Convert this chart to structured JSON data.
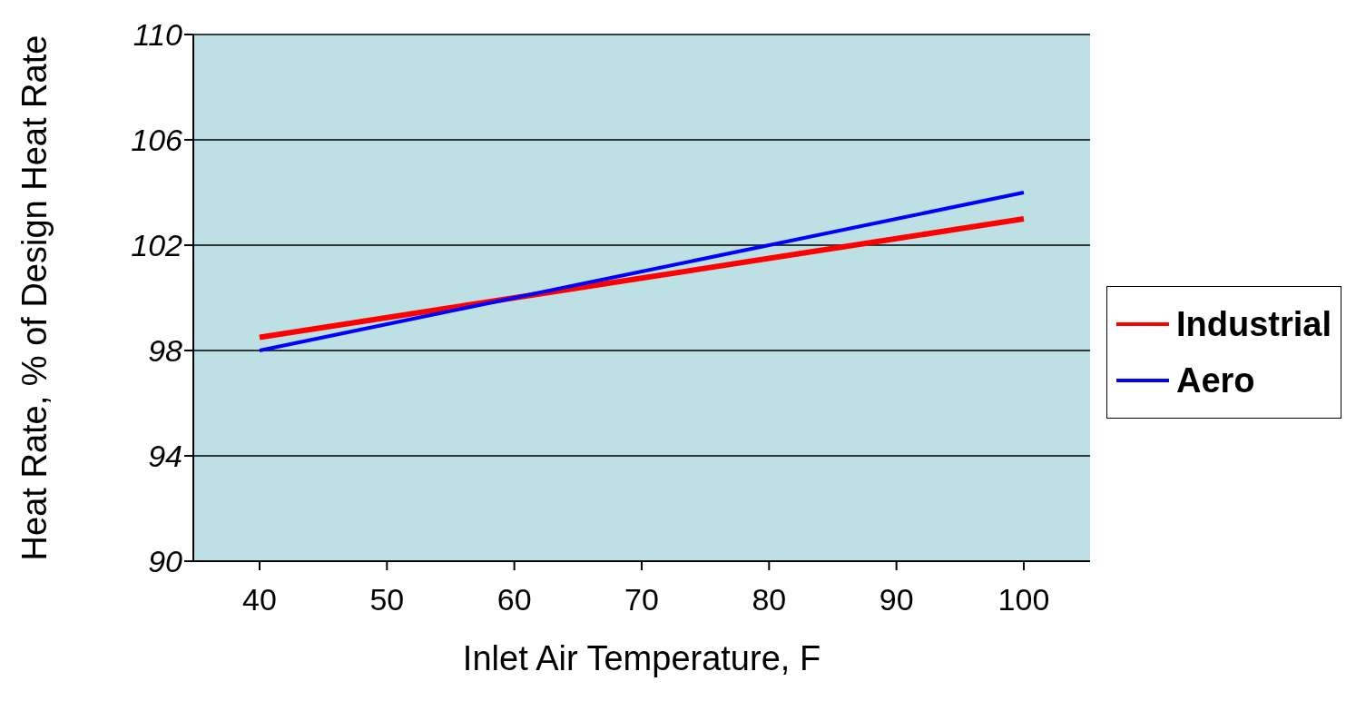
{
  "chart_data": {
    "type": "line",
    "xlabel": "Inlet Air Temperature, F",
    "ylabel": "Heat Rate, % of Design Heat Rate",
    "categories": [
      "40",
      "50",
      "60",
      "70",
      "80",
      "90",
      "100"
    ],
    "series": [
      {
        "name": "Industrial",
        "color": "#ff0000",
        "values": [
          98.5,
          99.25,
          100,
          100.75,
          101.5,
          102.25,
          103
        ]
      },
      {
        "name": "Aero",
        "color": "#0000ff",
        "values": [
          98,
          99,
          100,
          101,
          102,
          103,
          104
        ]
      }
    ],
    "ylim": [
      90,
      110
    ],
    "yticks": [
      90,
      94,
      98,
      102,
      106,
      110
    ],
    "grid": "y",
    "legend": "right",
    "marker": "none",
    "line_style": "solid"
  }
}
